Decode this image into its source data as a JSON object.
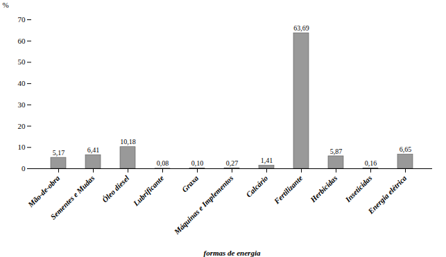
{
  "chart_data": {
    "type": "bar",
    "categories": [
      "Mão-de-obra",
      "Sementes e Mudas",
      "Óleo diesel",
      "Lubrificante",
      "Graxa",
      "Máquinas e Implementos",
      "Calcário",
      "Fertilizante",
      "Herbicidas",
      "Inseticidas",
      "Energia elétrica"
    ],
    "values": [
      5.17,
      6.41,
      10.18,
      0.08,
      0.1,
      0.27,
      1.41,
      63.69,
      5.87,
      0.16,
      6.65
    ],
    "value_labels": [
      "5,17",
      "6,41",
      "10,18",
      "0,08",
      "0,10",
      "0,27",
      "1,41",
      "63,69",
      "5,87",
      "0,16",
      "6,65"
    ],
    "data_labels": true,
    "color": "#999999",
    "xlabel": "formas de energia",
    "ylabel": "%",
    "ylim": [
      0,
      70
    ],
    "yticks": [
      0,
      10,
      20,
      30,
      40,
      50,
      60,
      70
    ],
    "grid": false
  }
}
